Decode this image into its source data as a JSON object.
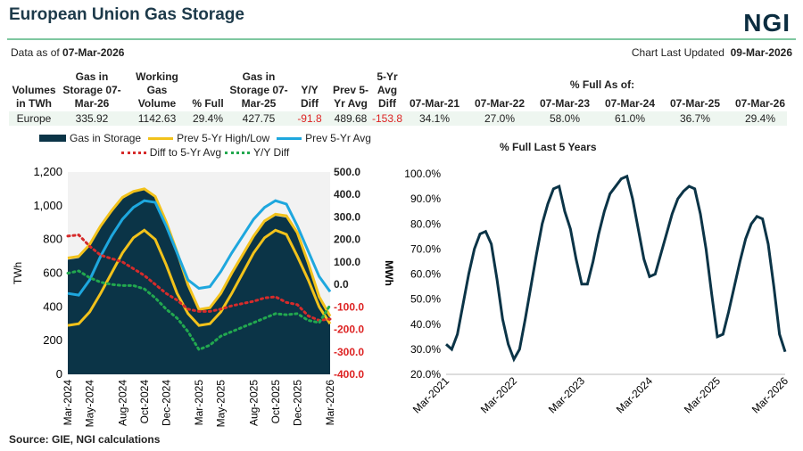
{
  "header": {
    "title": "European Union Gas Storage",
    "logo": "NGI",
    "data_as_of_label": "Data as of",
    "data_as_of": "07-Mar-2026",
    "updated_label": "Chart Last Updated",
    "updated": "09-Mar-2026"
  },
  "table": {
    "headers": [
      "Volumes in TWh",
      "Gas in Storage 07-Mar-26",
      "Working Gas Volume",
      "% Full",
      "Gas in Storage 07-Mar-25",
      "Y/Y Diff",
      "Prev 5-Yr Avg",
      "5-Yr Avg Diff"
    ],
    "pct_full_header": "% Full As of:",
    "pct_dates": [
      "07-Mar-21",
      "07-Mar-22",
      "07-Mar-23",
      "07-Mar-24",
      "07-Mar-25",
      "07-Mar-26"
    ],
    "row": [
      "Europe",
      "335.92",
      "1142.63",
      "29.4%",
      "427.75",
      "-91.8",
      "489.68",
      "-153.8"
    ],
    "pct_values": [
      "34.1%",
      "27.0%",
      "58.0%",
      "61.0%",
      "36.7%",
      "29.4%"
    ]
  },
  "source": "Source:  GIE, NGI calculations",
  "chart_data": [
    {
      "type": "area+line",
      "ylabel": "TWh",
      "y2label": "MWh",
      "ylim": [
        0,
        1200
      ],
      "y2lim": [
        -400,
        500
      ],
      "yticks": [
        "0",
        "200",
        "400",
        "600",
        "800",
        "1,000",
        "1,200"
      ],
      "y2ticks": [
        "-400.0",
        "-300.0",
        "-200.0",
        "-100.0",
        "0.0",
        "100.0",
        "200.0",
        "300.0",
        "400.0",
        "500.0"
      ],
      "xticks": [
        "Mar-2024",
        "May-2024",
        "Aug-2024",
        "Oct-2024",
        "Dec-2024",
        "Mar-2025",
        "May-2025",
        "Aug-2025",
        "Oct-2025",
        "Dec-2025",
        "Mar-2026"
      ],
      "x": [
        "Mar-2024",
        "Apr-2024",
        "May-2024",
        "Jun-2024",
        "Jul-2024",
        "Aug-2024",
        "Sep-2024",
        "Oct-2024",
        "Nov-2024",
        "Dec-2024",
        "Jan-2025",
        "Feb-2025",
        "Mar-2025",
        "Apr-2025",
        "May-2025",
        "Jun-2025",
        "Jul-2025",
        "Aug-2025",
        "Sep-2025",
        "Oct-2025",
        "Nov-2025",
        "Dec-2025",
        "Jan-2026",
        "Feb-2026",
        "Mar-2026"
      ],
      "series": [
        {
          "name": "Gas in Storage",
          "color": "#0b3447",
          "values": [
            680,
            690,
            760,
            870,
            960,
            1040,
            1080,
            1095,
            1050,
            900,
            720,
            520,
            380,
            390,
            470,
            590,
            700,
            810,
            900,
            940,
            930,
            830,
            650,
            450,
            336
          ]
        },
        {
          "name": "Prev 5-Yr High/Low",
          "color": "#f2c21b",
          "values": [
            690,
            700,
            770,
            880,
            970,
            1050,
            1085,
            1100,
            1055,
            905,
            725,
            530,
            385,
            395,
            480,
            600,
            710,
            820,
            910,
            950,
            940,
            840,
            660,
            460,
            345
          ]
        },
        {
          "name": "Prev 5-Yr High/Low",
          "color": "#f2c21b",
          "values": [
            290,
            300,
            370,
            480,
            600,
            720,
            810,
            855,
            800,
            650,
            480,
            360,
            290,
            300,
            370,
            480,
            600,
            720,
            810,
            855,
            830,
            700,
            560,
            400,
            300
          ]
        },
        {
          "name": "Prev 5-Yr Avg",
          "color": "#1ea7de",
          "values": [
            480,
            470,
            560,
            700,
            820,
            920,
            990,
            1030,
            1020,
            880,
            720,
            560,
            510,
            520,
            610,
            720,
            820,
            920,
            990,
            1030,
            1010,
            880,
            730,
            580,
            490
          ]
        },
        {
          "name": "Diff to 5-Yr Avg",
          "color": "#d62b2b",
          "axis": "right",
          "values": [
            215,
            220,
            170,
            130,
            115,
            100,
            70,
            40,
            0,
            -40,
            -70,
            -110,
            -120,
            -120,
            -110,
            -95,
            -85,
            -75,
            -60,
            -55,
            -80,
            -90,
            -140,
            -160,
            -154
          ]
        },
        {
          "name": "Y/Y Diff",
          "color": "#22a84f",
          "axis": "right",
          "values": [
            50,
            60,
            30,
            10,
            0,
            -5,
            -5,
            -20,
            -60,
            -110,
            -150,
            -210,
            -290,
            -270,
            -230,
            -210,
            -190,
            -170,
            -150,
            -130,
            -135,
            -130,
            -160,
            -170,
            -92
          ]
        }
      ]
    },
    {
      "type": "line",
      "title": "% Full Last 5 Years",
      "ylim": [
        20,
        100
      ],
      "color": "#0b3447",
      "yticks": [
        "20.0%",
        "30.0%",
        "40.0%",
        "50.0%",
        "60.0%",
        "70.0%",
        "80.0%",
        "90.0%",
        "100.0%"
      ],
      "xticks": [
        "Mar-2021",
        "Mar-2022",
        "Mar-2023",
        "Mar-2024",
        "Mar-2025",
        "Mar-2026"
      ],
      "x_range": [
        "Mar-2021",
        "Mar-2026"
      ],
      "x_step": "monthly",
      "values": [
        32,
        30,
        36,
        48,
        60,
        70,
        76,
        77,
        72,
        58,
        42,
        32,
        26,
        30,
        42,
        55,
        68,
        80,
        88,
        94,
        95,
        85,
        78,
        66,
        56,
        56,
        65,
        76,
        85,
        92,
        95,
        98,
        99,
        90,
        78,
        66,
        59,
        60,
        68,
        76,
        84,
        90,
        93,
        95,
        94,
        84,
        70,
        52,
        35,
        36,
        45,
        55,
        65,
        74,
        80,
        83,
        82,
        72,
        55,
        36,
        29
      ]
    }
  ]
}
